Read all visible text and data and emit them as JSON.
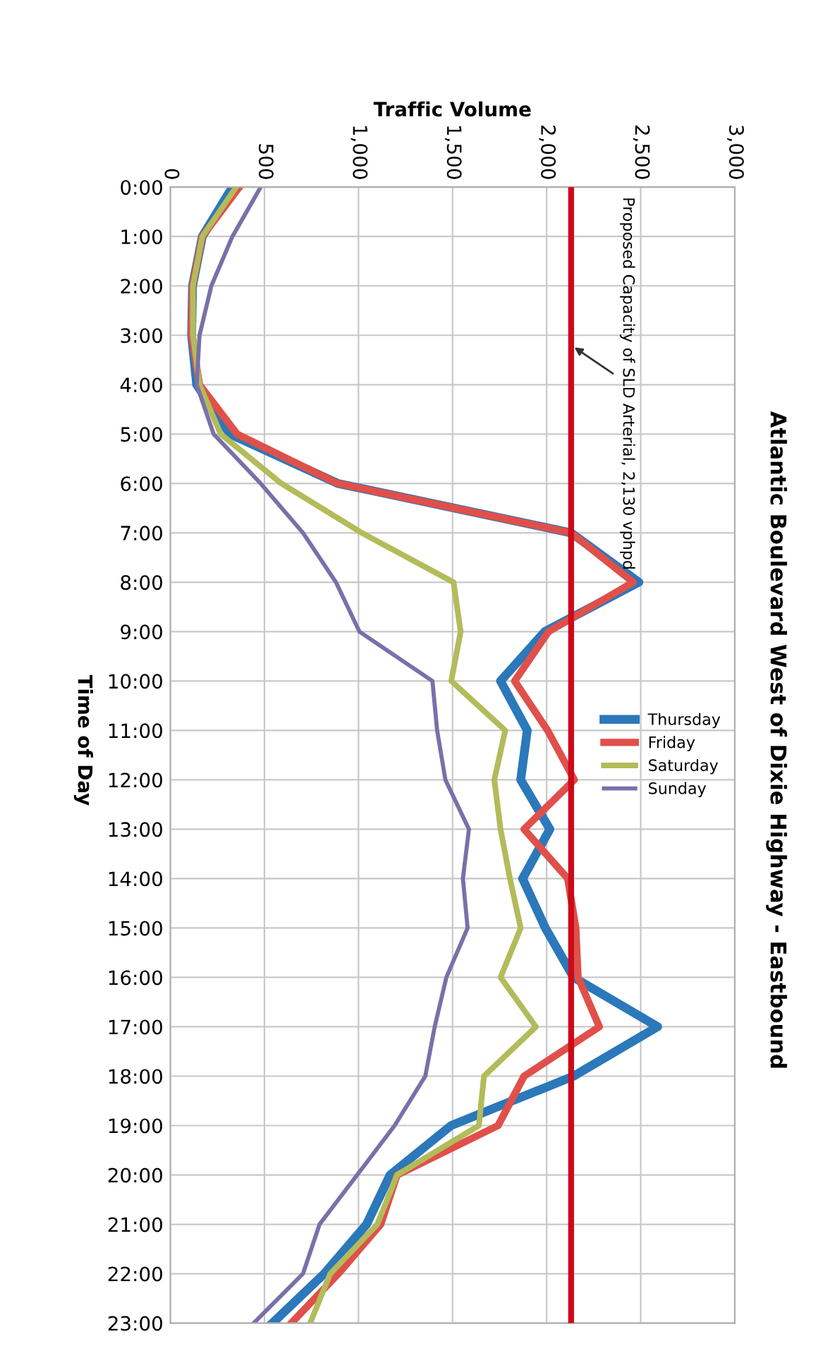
{
  "chart_data": {
    "type": "line",
    "orientation": "horizontal",
    "title": "Atlantic Boulevard West of Dixie Highway - Eastbound",
    "xlabel": "Traffic Volume",
    "ylabel": "Time of Day",
    "categories": [
      "0:00",
      "1:00",
      "2:00",
      "3:00",
      "4:00",
      "5:00",
      "6:00",
      "7:00",
      "8:00",
      "9:00",
      "10:00",
      "11:00",
      "12:00",
      "13:00",
      "14:00",
      "15:00",
      "16:00",
      "17:00",
      "18:00",
      "19:00",
      "20:00",
      "21:00",
      "22:00",
      "23:00"
    ],
    "series": [
      {
        "name": "Thursday",
        "color": "#2b78ba",
        "values": [
          330,
          170,
          118,
          113,
          140,
          317,
          890,
          2130,
          2490,
          1990,
          1755,
          1897,
          1862,
          2017,
          1872,
          1993,
          2143,
          2590,
          2143,
          1492,
          1168,
          1043,
          818,
          543
        ]
      },
      {
        "name": "Friday",
        "color": "#e0504a",
        "values": [
          367,
          170,
          118,
          113,
          155,
          355,
          890,
          2130,
          2460,
          2010,
          1830,
          2005,
          2147,
          1880,
          2112,
          2155,
          2167,
          2280,
          1880,
          1742,
          1205,
          1118,
          893,
          643
        ]
      },
      {
        "name": "Saturday",
        "color": "#b3bb5a",
        "values": [
          350,
          170,
          120,
          120,
          155,
          268,
          590,
          1017,
          1505,
          1543,
          1493,
          1780,
          1722,
          1755,
          1805,
          1862,
          1755,
          1943,
          1667,
          1640,
          1205,
          1100,
          850,
          743
        ]
      },
      {
        "name": "Sunday",
        "color": "#7a70a8",
        "values": [
          480,
          330,
          218,
          155,
          140,
          230,
          480,
          705,
          880,
          1005,
          1393,
          1418,
          1462,
          1587,
          1555,
          1580,
          1467,
          1405,
          1355,
          1192,
          993,
          793,
          705,
          443
        ]
      }
    ],
    "xlim": [
      0,
      3000
    ],
    "xticks": [
      0,
      500,
      {
        "value": 1000,
        "label": "1,000"
      },
      {
        "value": 1500,
        "label": "1,500"
      },
      {
        "value": 2000,
        "label": "2,000"
      },
      {
        "value": 2500,
        "label": "2,500"
      },
      {
        "value": 3000,
        "label": "3,000"
      }
    ],
    "ref_lines": [
      {
        "axis": "x",
        "value": 2130,
        "label": "Proposed Capacity of SLD Arterial, 2,130 vphpd",
        "color": "#cc0a1a"
      }
    ],
    "grid": true,
    "legend": "right",
    "marker": "none",
    "line_style": "solid"
  }
}
